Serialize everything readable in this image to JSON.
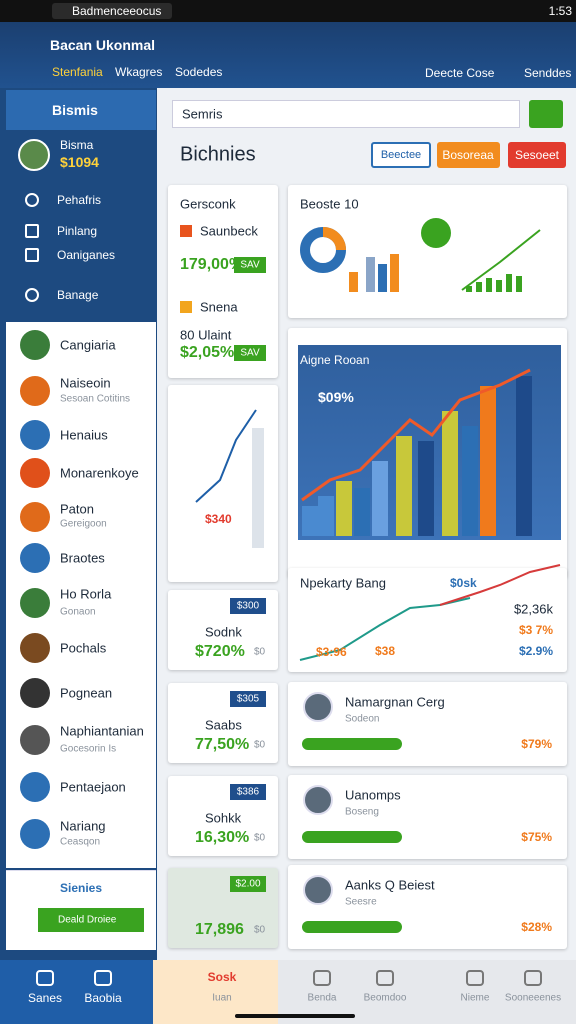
{
  "status": {
    "tab": "Badmenceeocus",
    "time": "1:53"
  },
  "header": {
    "title": "Bacan Ukonmal",
    "nav": [
      "Stenfania",
      "Wkagres",
      "Sodedes"
    ],
    "actions": [
      "Deecte Cose",
      "Senddes"
    ]
  },
  "sidebar": {
    "heading": "Bismis",
    "user": {
      "name": "Bisma",
      "value": "$1094"
    },
    "menu": [
      "Pehafris",
      "Pinlang",
      "Oaniganes",
      "Banage"
    ],
    "list": [
      {
        "title": "Cangiaria"
      },
      {
        "title": "Naiseoin",
        "subtitle": "Sesoan Cotitins"
      },
      {
        "title": "Henaius"
      },
      {
        "title": "Monarenkoye"
      },
      {
        "title": "Paton",
        "subtitle": "Gereigoon"
      },
      {
        "title": "Braotes"
      },
      {
        "title": "Ho Rorla",
        "subtitle": "Gonaon"
      },
      {
        "title": "Pochals"
      },
      {
        "title": "Pognean"
      },
      {
        "title": "Naphiantanian",
        "subtitle": "Gocesorin Is"
      },
      {
        "title": "Pentaejaon"
      },
      {
        "title": "Nariang",
        "subtitle": "Ceasqon"
      }
    ],
    "footer": {
      "label": "Sienies",
      "button": "Deald Droiee"
    }
  },
  "main": {
    "search": {
      "placeholder": "Semris"
    },
    "title": "Bichnies",
    "buttons": [
      "Beectee",
      "Bosoreaa",
      "Sesoeet"
    ],
    "stats_card": {
      "title": "Gersconk",
      "items": [
        {
          "label": "Saunbeck",
          "value": "179,00%",
          "badge": "SAV"
        },
        {
          "label": "Snena",
          "sublabel": "80 Ulaint",
          "value": "$2,05%",
          "badge": "SAV"
        }
      ]
    },
    "donut_card": {
      "title": "Beoste 10"
    },
    "trend_card": {
      "value": "$340"
    },
    "area_card": {
      "title": "Aigne Rooan",
      "value": "$09%"
    },
    "line_card": {
      "title": "Npekarty Bang",
      "badge": "$0sk",
      "values": [
        "$2,36k",
        "$3 7%",
        "$2.9%"
      ],
      "labels": [
        "$3:96",
        "$38"
      ]
    },
    "kpis": [
      {
        "badge": "$300",
        "label": "Sodnk",
        "value": "$720%",
        "unit": "$0"
      },
      {
        "badge": "$305",
        "label": "Saabs",
        "value": "77,50%",
        "unit": "$0"
      },
      {
        "badge": "$386",
        "label": "Sohkk",
        "value": "16,30%",
        "unit": "$0"
      },
      {
        "badge": "$2.00",
        "value": "17,896",
        "unit": "$0"
      }
    ],
    "people": [
      {
        "name": "Namargnan Cerg",
        "role": "Sodeon",
        "value": "$79%"
      },
      {
        "name": "Uanomps",
        "role": "Boseng",
        "value": "$75%"
      },
      {
        "name": "Aanks Q Beiest",
        "role": "Seesre",
        "value": "$28%"
      }
    ]
  },
  "bottom_nav": [
    {
      "label": "Sanes"
    },
    {
      "label": "Baobia"
    },
    {
      "label": "Sosk",
      "sublabel": "Iuan"
    },
    {
      "label": "Benda"
    },
    {
      "label": "Beomdoo"
    },
    {
      "label": "Nieme"
    },
    {
      "label": "Sooneeenes"
    }
  ]
}
